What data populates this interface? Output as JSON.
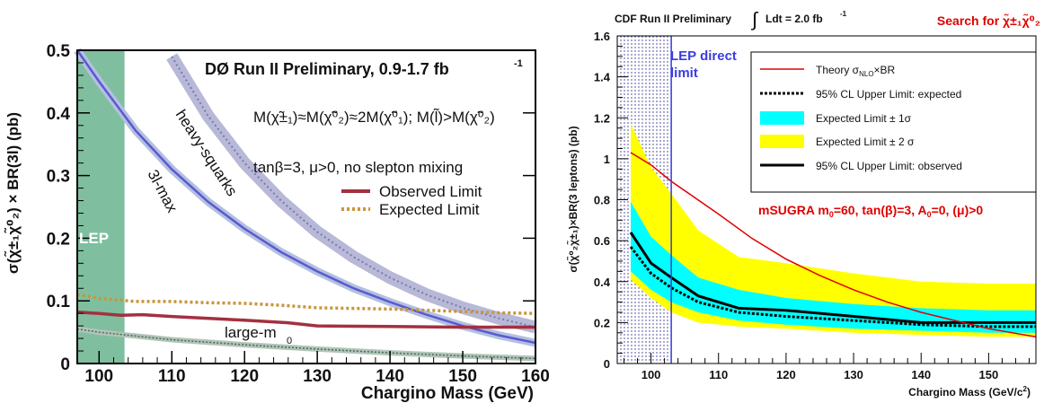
{
  "chart_data": [
    {
      "type": "line",
      "title": "DØ Run II Preliminary, 0.9-1.7 fb",
      "title_sup": "-1",
      "xlabel": "Chargino Mass (GeV)",
      "ylabel": "σ(χ̃±₁χ̃⁰₂) × BR(3l) (pb)",
      "xlim": [
        97,
        160
      ],
      "ylim": [
        0,
        0.5
      ],
      "xticks": [
        100,
        110,
        120,
        130,
        140,
        150,
        160
      ],
      "yticks": [
        0,
        0.1,
        0.2,
        0.3,
        0.4,
        0.5
      ],
      "annotations": {
        "model_line1": "M(χ̃±₁)≈M(χ̃⁰₂)≈2M(χ̃⁰₁); M(l̃)>M(χ̃⁰₂)",
        "model_line2": "tanβ=3, μ>0, no slepton mixing",
        "heavy_squarks": "heavy-squarks",
        "three_l_max": "3l-max",
        "large_m0": "large-m",
        "large_m0_sub": "0",
        "lep": "LEP"
      },
      "lep_band": [
        97,
        103.5
      ],
      "legend": {
        "position": "right-middle",
        "entries": [
          {
            "label": "Observed Limit",
            "color": "#a33040",
            "style": "solid"
          },
          {
            "label": "Expected Limit",
            "color": "#c8963c",
            "style": "dotted"
          }
        ]
      },
      "series": [
        {
          "name": "Observed Limit",
          "color": "#a33040",
          "x": [
            97,
            100,
            103,
            106,
            110,
            120,
            126,
            130,
            140,
            150,
            158,
            160
          ],
          "y": [
            0.082,
            0.08,
            0.077,
            0.078,
            0.075,
            0.069,
            0.065,
            0.06,
            0.059,
            0.058,
            0.058,
            0.058
          ]
        },
        {
          "name": "Expected Limit",
          "color": "#c8963c",
          "x": [
            97,
            100,
            105,
            110,
            115,
            120,
            125,
            130,
            135,
            140,
            145,
            150,
            155,
            160
          ],
          "y": [
            0.11,
            0.104,
            0.099,
            0.099,
            0.097,
            0.096,
            0.093,
            0.089,
            0.088,
            0.087,
            0.085,
            0.083,
            0.081,
            0.08
          ]
        },
        {
          "name": "3l-max",
          "color": "#5a5ad0",
          "x": [
            97,
            100,
            105,
            110,
            115,
            120,
            125,
            130,
            135,
            140,
            145,
            150,
            155,
            160
          ],
          "y": [
            0.5,
            0.45,
            0.372,
            0.31,
            0.258,
            0.215,
            0.178,
            0.147,
            0.12,
            0.098,
            0.078,
            0.06,
            0.045,
            0.033
          ]
        },
        {
          "name": "heavy-squarks",
          "color": "#8a8ab8",
          "x": [
            110,
            115,
            120,
            125,
            130,
            135,
            140,
            145,
            150,
            155,
            160
          ],
          "y": [
            0.49,
            0.395,
            0.32,
            0.26,
            0.21,
            0.17,
            0.137,
            0.11,
            0.089,
            0.072,
            0.058
          ]
        },
        {
          "name": "large-m0",
          "color": "#6a8a7a",
          "x": [
            97,
            100,
            105,
            110,
            120,
            130,
            140,
            150,
            160
          ],
          "y": [
            0.055,
            0.05,
            0.044,
            0.038,
            0.03,
            0.023,
            0.017,
            0.012,
            0.008
          ]
        }
      ]
    },
    {
      "type": "line",
      "title": "CDF Run II Preliminary",
      "title_lumi": "Ldt = 2.0 fb",
      "title_lumi_sup": "-1",
      "search_title": "Search for χ̃±₁χ̃⁰₂",
      "xlabel": "Chargino Mass (GeV/c",
      "xlabel_sup": "2",
      "xlabel_end": ")",
      "ylabel": "σ(χ̃⁰₂χ̃±₁)×BR(3 leptons) (pb)",
      "xlim": [
        95,
        157
      ],
      "ylim": [
        0,
        1.6
      ],
      "xticks": [
        100,
        110,
        120,
        130,
        140,
        150
      ],
      "yticks": [
        0,
        0.2,
        0.4,
        0.6,
        0.8,
        1,
        1.2,
        1.4,
        1.6
      ],
      "yticklabels": [
        "0",
        "0.2",
        "0.4",
        "0.6",
        "0.8",
        "1",
        "1.2",
        "1.4",
        "1.6"
      ],
      "lep_label_1": "LEP direct",
      "lep_label_2": "limit",
      "lep_limit": 103,
      "msugra_label": "mSUGRA m",
      "msugra_sub": "0",
      "msugra_rest": "=60, tan(β)=3, A",
      "msugra_sub2": "0",
      "msugra_end": "=0, (μ)>0",
      "legend": {
        "position": "top-right",
        "entries": [
          {
            "label": "Theory σNLO×BR",
            "color": "#e00000"
          },
          {
            "label": "95% CL Upper Limit: expected",
            "color": "#000000"
          },
          {
            "label": "Expected Limit ± 1σ",
            "color": "#00ffff"
          },
          {
            "label": "Expected Limit ± 2 σ",
            "color": "#ffff00"
          },
          {
            "label": "95% CL Upper Limit: observed",
            "color": "#000000"
          }
        ]
      },
      "x": [
        97,
        100,
        103,
        107,
        113,
        120,
        130,
        140,
        150,
        157
      ],
      "series": [
        {
          "name": "Theory σNLO×BR",
          "color": "#e00000",
          "x": [
            97,
            100,
            103,
            110,
            115,
            120,
            125,
            130,
            135,
            140,
            145,
            150,
            157
          ],
          "y": [
            1.03,
            0.97,
            0.89,
            0.73,
            0.61,
            0.51,
            0.43,
            0.36,
            0.3,
            0.25,
            0.21,
            0.17,
            0.13
          ]
        },
        {
          "name": "95% CL Upper Limit: observed",
          "color": "#000000",
          "y": [
            0.64,
            0.49,
            0.42,
            0.33,
            0.27,
            0.26,
            0.23,
            0.2,
            0.2,
            0.2
          ]
        },
        {
          "name": "95% CL Upper Limit: expected",
          "color": "#000000",
          "y": [
            0.57,
            0.44,
            0.37,
            0.3,
            0.25,
            0.23,
            0.21,
            0.19,
            0.18,
            0.18
          ]
        },
        {
          "name": "Expected Limit ± 1σ",
          "lower": [
            0.45,
            0.36,
            0.3,
            0.25,
            0.21,
            0.19,
            0.17,
            0.16,
            0.15,
            0.15
          ],
          "upper": [
            0.79,
            0.62,
            0.53,
            0.42,
            0.36,
            0.32,
            0.29,
            0.27,
            0.26,
            0.26
          ]
        },
        {
          "name": "Expected Limit ± 2 σ",
          "lower": [
            0.41,
            0.32,
            0.25,
            0.2,
            0.18,
            0.17,
            0.15,
            0.14,
            0.13,
            0.13
          ],
          "upper": [
            1.17,
            0.96,
            0.83,
            0.65,
            0.52,
            0.49,
            0.44,
            0.4,
            0.39,
            0.39
          ]
        }
      ]
    }
  ]
}
